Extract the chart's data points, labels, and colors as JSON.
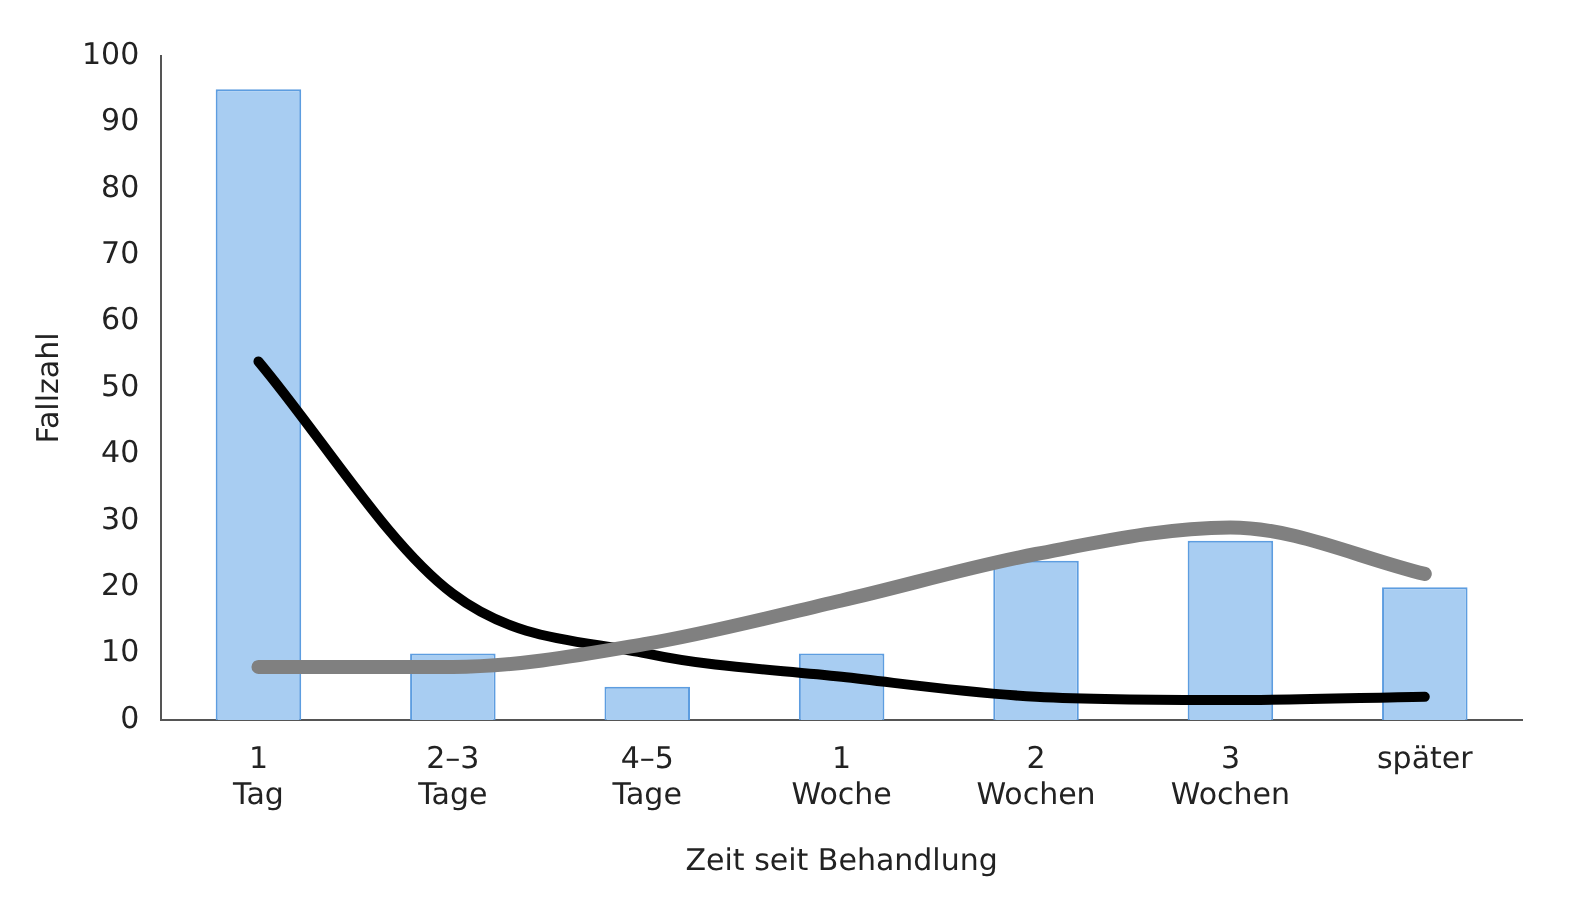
{
  "chart_data": {
    "type": "bar",
    "xlabel": "Zeit seit Behandlung",
    "ylabel": "Fallzahl",
    "categories": [
      "1\nTag",
      "2–3\nTage",
      "4–5\nTage",
      "1\nWoche",
      "2\nWochen",
      "3\nWochen",
      "später"
    ],
    "series": [
      {
        "color": "#a8cdf2",
        "values": [
          95,
          10,
          5,
          10,
          24,
          27,
          20
        ]
      },
      {
        "type": "line",
        "color": "#808080",
        "values": [
          8,
          8,
          11.5,
          18,
          25,
          29,
          22
        ]
      },
      {
        "type": "line",
        "color": "#000000",
        "values": [
          54,
          19,
          10,
          6.5,
          3.5,
          3,
          3.5
        ]
      }
    ],
    "ylim": [
      0,
      100
    ],
    "yticks": [
      0,
      10,
      20,
      30,
      40,
      50,
      60,
      70,
      80,
      90,
      100
    ],
    "grid": false,
    "legend": false,
    "marker": "none",
    "line_style": "solid"
  }
}
